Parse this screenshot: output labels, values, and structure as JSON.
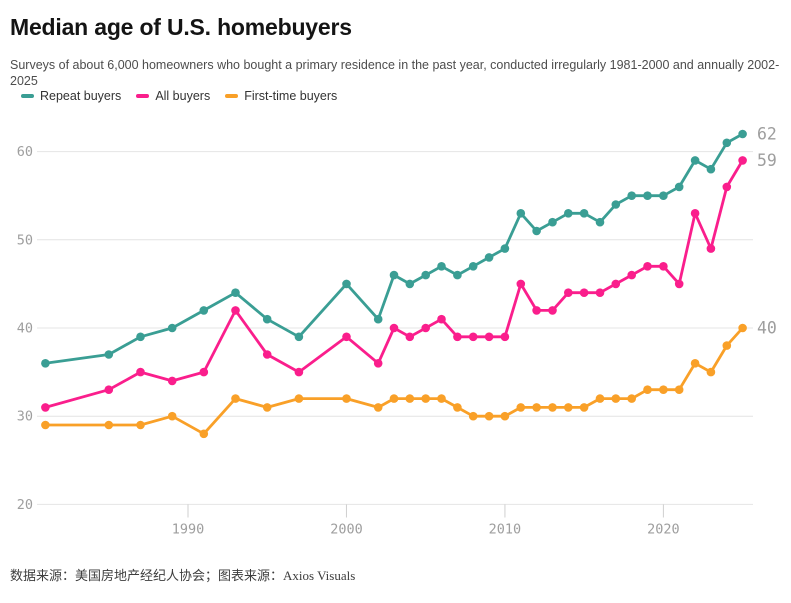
{
  "header": {
    "title": "Median age of U.S. homebuyers",
    "subtitle": "Surveys of about 6,000 homeowners who bought a primary residence in the past year, conducted irregularly 1981-2000 and annually 2002-2025"
  },
  "chart_data": {
    "type": "line",
    "title": "Median age of U.S. homebuyers",
    "xlabel": "",
    "ylabel": "",
    "ylim": [
      20,
      65
    ],
    "yticks": [
      20,
      30,
      40,
      50,
      60
    ],
    "xticks": [
      1990,
      2000,
      2010,
      2020
    ],
    "grid": "horizontal",
    "legend_position": "top-left",
    "x": [
      1981,
      1985,
      1987,
      1989,
      1991,
      1993,
      1995,
      1997,
      2000,
      2002,
      2003,
      2004,
      2005,
      2006,
      2007,
      2008,
      2009,
      2010,
      2011,
      2012,
      2013,
      2014,
      2015,
      2016,
      2017,
      2018,
      2019,
      2020,
      2021,
      2022,
      2023,
      2024,
      2025
    ],
    "series": [
      {
        "id": "repeat-buyers",
        "name": "Repeat buyers",
        "color": "#3a9e94",
        "end_label": "62",
        "values": [
          36,
          37,
          39,
          40,
          42,
          44,
          41,
          39,
          45,
          41,
          46,
          45,
          46,
          47,
          46,
          47,
          48,
          49,
          53,
          51,
          52,
          53,
          53,
          52,
          54,
          55,
          55,
          55,
          56,
          59,
          58,
          61,
          62
        ]
      },
      {
        "id": "all-buyers",
        "name": "All buyers",
        "color": "#fa1e8c",
        "end_label": "59",
        "values": [
          31,
          33,
          35,
          34,
          35,
          42,
          37,
          35,
          39,
          36,
          40,
          39,
          40,
          41,
          39,
          39,
          39,
          39,
          45,
          42,
          42,
          44,
          44,
          44,
          45,
          46,
          47,
          47,
          45,
          53,
          49,
          56,
          59
        ]
      },
      {
        "id": "first-time-buyers",
        "name": "First-time buyers",
        "color": "#f9a028",
        "end_label": "40",
        "values": [
          29,
          29,
          29,
          30,
          28,
          32,
          31,
          32,
          32,
          31,
          32,
          32,
          32,
          32,
          31,
          30,
          30,
          30,
          31,
          31,
          31,
          31,
          31,
          32,
          32,
          32,
          33,
          33,
          33,
          36,
          35,
          38,
          40
        ]
      }
    ]
  },
  "colors": {
    "gridline": "#e4e4e4",
    "tick": "#cfcfcf",
    "axis_text": "#9e9e9e"
  },
  "footer": {
    "source_text": "数据来源：美国房地产经纪人协会；图表来源：Axios Visuals"
  }
}
